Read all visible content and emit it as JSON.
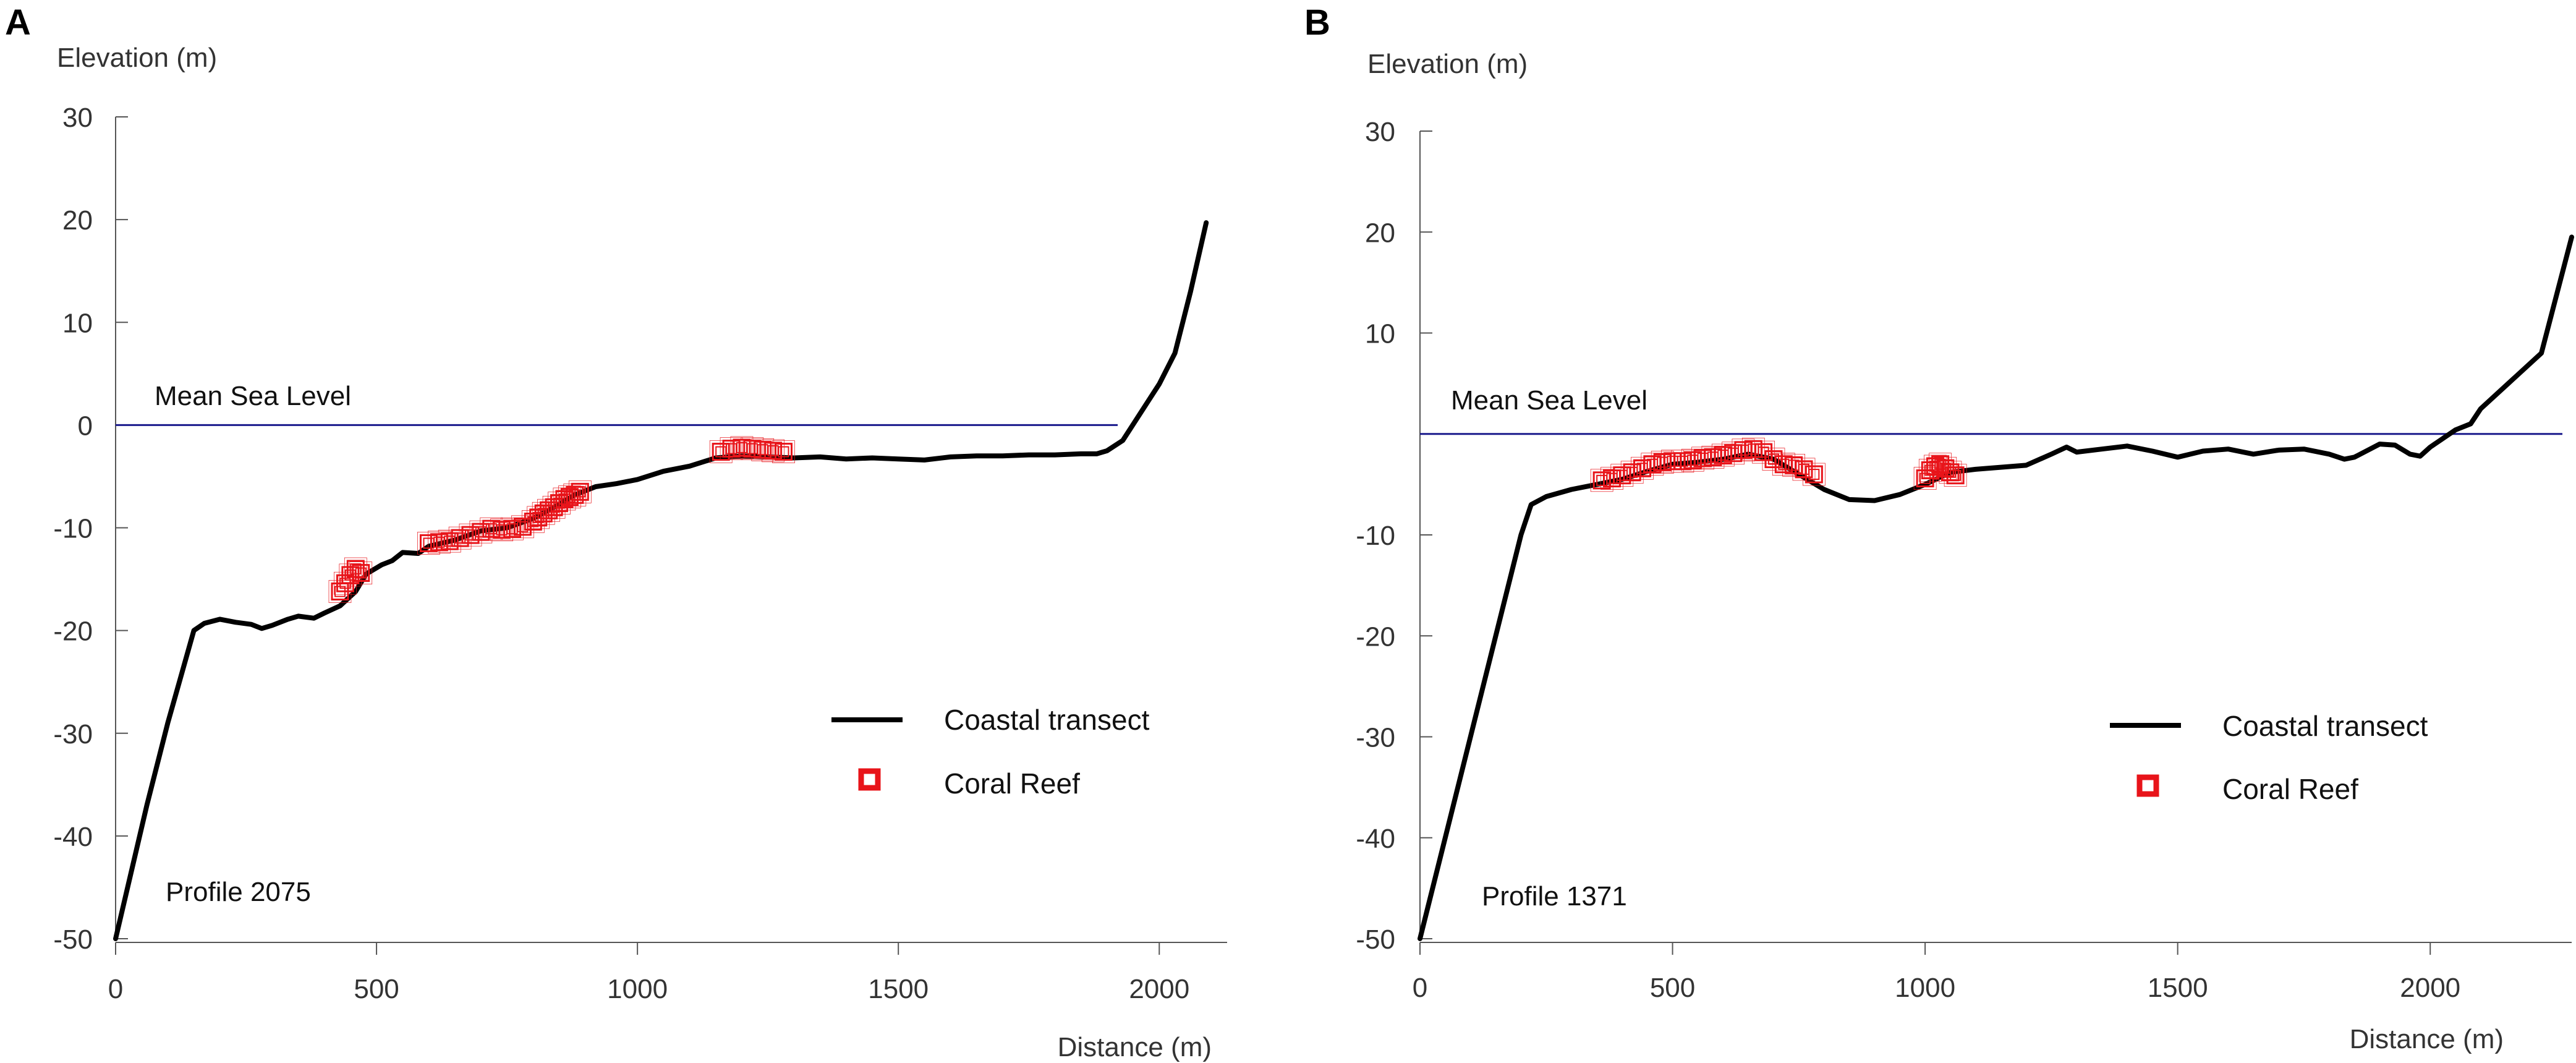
{
  "chart_data": [
    {
      "type": "line",
      "panel_label": "A",
      "ylabel": "Elevation (m)",
      "xlabel": "Distance (m)",
      "ylim": [
        -50,
        30
      ],
      "xlim": [
        0,
        2130
      ],
      "yticks": [
        30,
        20,
        10,
        0,
        -10,
        -20,
        -30,
        -40,
        -50
      ],
      "xticks": [
        0,
        500,
        1000,
        1500,
        2000
      ],
      "sea_level": {
        "label": "Mean Sea Level",
        "value": 0,
        "color": "#1a1a8c"
      },
      "profile_label": "Profile 2075",
      "legend": [
        {
          "label": "Coastal transect",
          "kind": "line",
          "color": "#000000"
        },
        {
          "label": "Coral Reef",
          "kind": "marker",
          "color": "#e8141a"
        }
      ],
      "series": [
        {
          "name": "Coastal transect",
          "color": "#000000",
          "x": [
            0,
            60,
            100,
            150,
            170,
            200,
            230,
            260,
            280,
            300,
            330,
            350,
            380,
            400,
            430,
            460,
            480,
            510,
            530,
            550,
            580,
            600,
            650,
            700,
            750,
            800,
            840,
            880,
            920,
            960,
            1000,
            1050,
            1100,
            1150,
            1200,
            1250,
            1300,
            1350,
            1400,
            1450,
            1500,
            1550,
            1600,
            1650,
            1700,
            1750,
            1800,
            1850,
            1880,
            1900,
            1930,
            2000,
            2030,
            2060,
            2090
          ],
          "y": [
            -50,
            -37,
            -29,
            -20,
            -19.3,
            -18.9,
            -19.2,
            -19.4,
            -19.8,
            -19.5,
            -18.9,
            -18.6,
            -18.8,
            -18.3,
            -17.6,
            -16.2,
            -14.5,
            -13.6,
            -13.2,
            -12.4,
            -12.5,
            -11.8,
            -11.2,
            -10.3,
            -10.0,
            -9.1,
            -8.0,
            -6.8,
            -6.0,
            -5.7,
            -5.3,
            -4.5,
            -4.0,
            -3.2,
            -3.0,
            -3.1,
            -3.2,
            -3.1,
            -3.3,
            -3.2,
            -3.3,
            -3.4,
            -3.1,
            -3.0,
            -3.0,
            -2.9,
            -2.9,
            -2.8,
            -2.8,
            -2.5,
            -1.5,
            4,
            7,
            13,
            19.7
          ]
        },
        {
          "name": "Coral Reef",
          "color": "#e8141a",
          "x": [
            430,
            440,
            450,
            460,
            470,
            600,
            620,
            640,
            660,
            680,
            700,
            720,
            740,
            760,
            780,
            800,
            810,
            820,
            830,
            840,
            850,
            860,
            870,
            880,
            890,
            1160,
            1180,
            1200,
            1220,
            1240,
            1260,
            1280
          ],
          "y": [
            -16.2,
            -15.4,
            -14.6,
            -14.0,
            -14.4,
            -11.5,
            -11.4,
            -11.3,
            -11.0,
            -10.7,
            -10.4,
            -10.1,
            -10.2,
            -10.1,
            -9.9,
            -9.4,
            -9.0,
            -8.6,
            -8.3,
            -8.0,
            -7.6,
            -7.2,
            -7.0,
            -6.8,
            -6.5,
            -2.6,
            -2.3,
            -2.2,
            -2.3,
            -2.4,
            -2.5,
            -2.6
          ]
        }
      ]
    },
    {
      "type": "line",
      "panel_label": "B",
      "ylabel": "Elevation (m)",
      "xlabel": "Distance (m)",
      "ylim": [
        -50,
        30
      ],
      "xlim": [
        0,
        2280
      ],
      "yticks": [
        30,
        20,
        10,
        -10,
        -20,
        -30,
        -40,
        -50
      ],
      "xticks": [
        0,
        500,
        1000,
        1500,
        2000
      ],
      "sea_level": {
        "label": "Mean Sea Level",
        "value": 0,
        "color": "#1a1a8c"
      },
      "profile_label": "Profile 1371",
      "legend": [
        {
          "label": "Coastal transect",
          "kind": "line",
          "color": "#000000"
        },
        {
          "label": "Coral Reef",
          "kind": "marker",
          "color": "#e8141a"
        }
      ],
      "series": [
        {
          "name": "Coastal transect",
          "color": "#000000",
          "x": [
            0,
            100,
            200,
            220,
            250,
            300,
            350,
            400,
            450,
            500,
            550,
            600,
            650,
            700,
            750,
            800,
            850,
            900,
            950,
            1000,
            1050,
            1100,
            1150,
            1200,
            1250,
            1280,
            1300,
            1350,
            1400,
            1450,
            1500,
            1550,
            1600,
            1650,
            1700,
            1750,
            1800,
            1830,
            1850,
            1900,
            1930,
            1960,
            1980,
            2000,
            2050,
            2080,
            2100,
            2220,
            2280
          ],
          "y": [
            -50,
            -30,
            -10,
            -7,
            -6.2,
            -5.5,
            -5.0,
            -4.5,
            -3.7,
            -3.0,
            -2.8,
            -2.5,
            -2.0,
            -2.5,
            -4.0,
            -5.5,
            -6.5,
            -6.6,
            -6.0,
            -5.0,
            -3.8,
            -3.5,
            -3.3,
            -3.1,
            -2.0,
            -1.3,
            -1.8,
            -1.5,
            -1.2,
            -1.7,
            -2.3,
            -1.7,
            -1.5,
            -2.0,
            -1.6,
            -1.5,
            -2.0,
            -2.5,
            -2.3,
            -1.0,
            -1.1,
            -2.0,
            -2.2,
            -1.3,
            0.4,
            1.0,
            2.5,
            8,
            19.5
          ]
        },
        {
          "name": "Coral Reef",
          "color": "#e8141a",
          "x": [
            360,
            380,
            400,
            420,
            440,
            460,
            480,
            500,
            520,
            540,
            560,
            580,
            600,
            620,
            640,
            660,
            680,
            700,
            720,
            740,
            760,
            780,
            1000,
            1010,
            1020,
            1030,
            1040,
            1050,
            1060
          ],
          "y": [
            -4.6,
            -4.4,
            -4.1,
            -3.8,
            -3.4,
            -3.0,
            -2.8,
            -2.7,
            -2.7,
            -2.6,
            -2.4,
            -2.3,
            -2.1,
            -1.9,
            -1.6,
            -1.5,
            -1.8,
            -2.5,
            -3.0,
            -3.1,
            -3.5,
            -4.0,
            -4.4,
            -3.6,
            -3.2,
            -3.0,
            -3.4,
            -3.8,
            -4.1
          ]
        }
      ]
    }
  ]
}
